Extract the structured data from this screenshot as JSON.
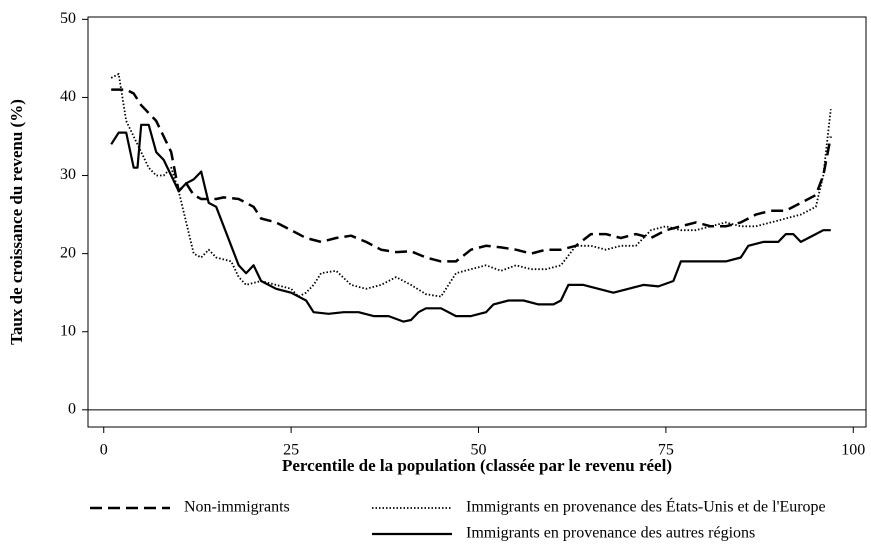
{
  "chart_data": {
    "type": "line",
    "xlabel": "Percentile de la population (classée par le revenu réel)",
    "ylabel": "Taux de croissance du revenu (%)",
    "xlim": [
      -2.1,
      101.7
    ],
    "ylim": [
      -2.2,
      50.3
    ],
    "xticks": [
      0,
      25,
      50,
      75,
      100
    ],
    "yticks": [
      0,
      10,
      20,
      30,
      40,
      50
    ],
    "reference_line": 0,
    "grid": false,
    "series": [
      {
        "name": "Non-immigrants",
        "color": "#000",
        "linestyle": "dashed",
        "x": [
          1,
          3,
          4,
          5,
          6,
          7,
          8,
          9,
          10,
          11,
          12,
          13,
          15,
          16,
          18,
          20,
          21,
          23,
          25,
          27,
          29,
          31,
          33,
          35,
          37,
          39,
          41,
          43,
          45,
          47,
          49,
          51,
          53,
          55,
          57,
          59,
          61,
          63,
          65,
          67,
          69,
          71,
          73,
          75,
          77,
          79,
          81,
          83,
          85,
          87,
          89,
          91,
          93,
          95,
          96,
          97
        ],
        "values": [
          41,
          41,
          40.5,
          39,
          38,
          37,
          35,
          33,
          28,
          29,
          27.5,
          27,
          27,
          27.2,
          27,
          26,
          24.5,
          24,
          23,
          22,
          21.5,
          22,
          22.3,
          21.5,
          20.5,
          20.2,
          20.3,
          19.5,
          19,
          19,
          20.5,
          21,
          20.8,
          20.5,
          20,
          20.5,
          20.5,
          21,
          22.5,
          22.5,
          22,
          22.5,
          22,
          23,
          23.5,
          24,
          23.5,
          23.5,
          24,
          25,
          25.5,
          25.5,
          26.5,
          27.5,
          30,
          35
        ]
      },
      {
        "name": "Immigrants en provenance des États-Unis et de l'Europe",
        "color": "#000",
        "linestyle": "dotted",
        "x": [
          1,
          2,
          3,
          4,
          5,
          6,
          7,
          8,
          9,
          10,
          11,
          12,
          13,
          14,
          15,
          17,
          18,
          19,
          21,
          23,
          25,
          26,
          27,
          28,
          29,
          31,
          33,
          35,
          37,
          39,
          41,
          43,
          45,
          47,
          49,
          51,
          53,
          55,
          57,
          59,
          61,
          63,
          65,
          67,
          69,
          71,
          73,
          75,
          77,
          79,
          81,
          83,
          85,
          87,
          89,
          91,
          93,
          95,
          96,
          97
        ],
        "values": [
          42.5,
          43,
          37,
          35,
          33,
          31,
          30,
          30,
          31,
          28,
          24,
          20,
          19.5,
          20.5,
          19.5,
          19,
          17,
          16,
          16.5,
          16,
          15.5,
          14.5,
          15,
          16,
          17.5,
          17.8,
          16,
          15.5,
          16,
          17,
          16,
          14.8,
          14.5,
          17.5,
          18,
          18.5,
          17.8,
          18.5,
          18,
          18,
          18.5,
          21,
          21,
          20.5,
          21,
          21,
          23,
          23.5,
          23,
          23,
          23.5,
          24,
          23.5,
          23.5,
          24,
          24.5,
          25,
          26,
          30,
          38.5
        ]
      },
      {
        "name": "Immigrants en provenance des autres régions",
        "color": "#000",
        "linestyle": "solid",
        "x": [
          1,
          2,
          3,
          4,
          4.5,
          5,
          6,
          7,
          8,
          9,
          10,
          11,
          12,
          13,
          14,
          15,
          16,
          17,
          18,
          19,
          20,
          21,
          23,
          25,
          27,
          28,
          30,
          32,
          34,
          36,
          38,
          40,
          41,
          42,
          43,
          45,
          47,
          49,
          51,
          52,
          54,
          56,
          58,
          60,
          61,
          62,
          64,
          66,
          68,
          70,
          72,
          74,
          76,
          77,
          79,
          81,
          83,
          85,
          86,
          88,
          90,
          91,
          92,
          93,
          94,
          95,
          96,
          97
        ],
        "values": [
          34,
          35.5,
          35.5,
          31,
          31,
          36.5,
          36.5,
          33,
          32,
          30,
          28,
          29,
          29.5,
          30.5,
          26.5,
          26,
          23.5,
          21,
          18.5,
          17.5,
          18.5,
          16.5,
          15.5,
          15,
          14,
          12.5,
          12.3,
          12.5,
          12.5,
          12,
          12,
          11.3,
          11.5,
          12.5,
          13,
          13,
          12,
          12,
          12.5,
          13.5,
          14,
          14,
          13.5,
          13.5,
          14,
          16,
          16,
          15.5,
          15,
          15.5,
          16,
          15.8,
          16.5,
          19,
          19,
          19,
          19,
          19.5,
          21,
          21.5,
          21.5,
          22.5,
          22.5,
          21.5,
          22,
          22.5,
          23,
          23
        ]
      }
    ]
  }
}
